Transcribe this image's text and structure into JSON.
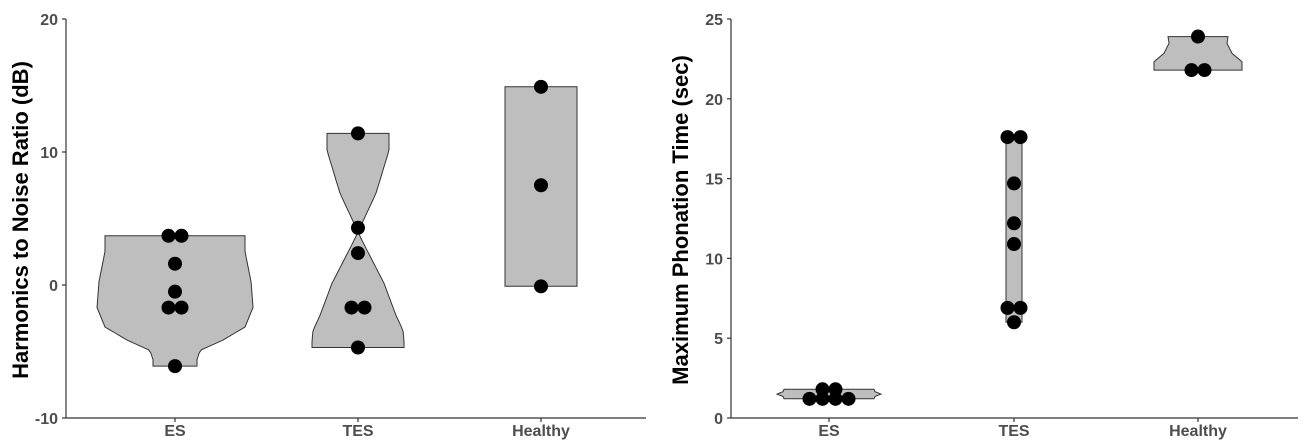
{
  "colors": {
    "violin_fill": "#bebebe",
    "point": "#000000",
    "axis": "#333333",
    "tick_text": "#4d4d4d"
  },
  "chart_data": [
    {
      "type": "violin",
      "ylabel": "Harmonics to Noise Ratio (dB)",
      "xlabel": "",
      "ylim": [
        -10,
        20
      ],
      "yticks": [
        -10,
        0,
        10,
        20
      ],
      "categories": [
        "ES",
        "TES",
        "Healthy"
      ],
      "series": [
        {
          "category": "ES",
          "values": [
            3.7,
            3.7,
            1.6,
            -0.5,
            -1.7,
            -1.7,
            -6.1
          ]
        },
        {
          "category": "TES",
          "values": [
            11.4,
            4.3,
            2.4,
            -1.7,
            -1.7,
            -4.7
          ]
        },
        {
          "category": "Healthy",
          "values": [
            14.9,
            7.5,
            -0.1
          ]
        }
      ],
      "grid": false,
      "legend": "none"
    },
    {
      "type": "violin",
      "ylabel": "Maximum Phonation Time (sec)",
      "xlabel": "",
      "ylim": [
        0,
        25
      ],
      "yticks": [
        0,
        5,
        10,
        15,
        20,
        25
      ],
      "categories": [
        "ES",
        "TES",
        "Healthy"
      ],
      "series": [
        {
          "category": "ES",
          "values": [
            1.8,
            1.8,
            1.2,
            1.2,
            1.2,
            1.2
          ]
        },
        {
          "category": "TES",
          "values": [
            17.6,
            17.6,
            14.7,
            12.2,
            10.9,
            6.9,
            6.9,
            6.0
          ]
        },
        {
          "category": "Healthy",
          "values": [
            23.9,
            21.8,
            21.8
          ]
        }
      ],
      "grid": false,
      "legend": "none"
    }
  ]
}
